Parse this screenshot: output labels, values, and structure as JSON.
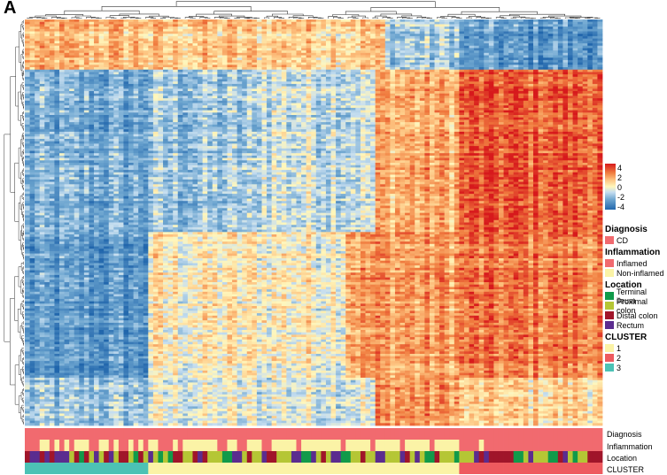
{
  "panel_label": "A",
  "colors": {
    "scale_low": "#2166ac",
    "scale_mid": "#fff7bc",
    "scale_high": "#d7191c",
    "diagnosis_cd": "#f16a6f",
    "inflamed": "#f16a6f",
    "non_inflamed": "#fbf3a6",
    "terminal_ileum": "#119a4a",
    "proximal_colon": "#b5c635",
    "distal_colon": "#a0152a",
    "rectum": "#5b2c8f",
    "cluster_1": "#fbf3a6",
    "cluster_2": "#ee5a5f",
    "cluster_3": "#4cc2b5"
  },
  "chart_data": {
    "type": "heatmap",
    "title": "",
    "xlabel": "",
    "ylabel": "",
    "clustered_rows": true,
    "clustered_columns": true,
    "n_columns": 117,
    "n_rows": 170,
    "color_scale": {
      "ticks": [
        "4",
        "2",
        "0",
        "-2",
        "-4"
      ],
      "range": [
        -4,
        4
      ]
    },
    "annotation_tracks": [
      "Diagnosis",
      "Inflammation",
      "Location",
      "CLUSTER"
    ],
    "legend": [
      {
        "title": "Diagnosis",
        "items": [
          {
            "label": "CD",
            "color": "#f16a6f"
          }
        ]
      },
      {
        "title": "Inflammation",
        "items": [
          {
            "label": "Inflamed",
            "color": "#f16a6f"
          },
          {
            "label": "Non-inflamed",
            "color": "#fbf3a6"
          }
        ]
      },
      {
        "title": "Location",
        "items": [
          {
            "label": "Terminal ileum",
            "color": "#119a4a"
          },
          {
            "label": "Proximal colon",
            "color": "#b5c635"
          },
          {
            "label": "Distal colon",
            "color": "#a0152a"
          },
          {
            "label": "Rectum",
            "color": "#5b2c8f"
          }
        ]
      },
      {
        "title": "CLUSTER",
        "items": [
          {
            "label": "1",
            "color": "#fbf3a6"
          },
          {
            "label": "2",
            "color": "#ee5a5f"
          },
          {
            "label": "3",
            "color": "#4cc2b5"
          }
        ]
      }
    ],
    "cluster_spans": [
      {
        "cluster": "3",
        "columns": 25
      },
      {
        "cluster": "1",
        "columns": 63
      },
      {
        "cluster": "2",
        "columns": 29
      }
    ]
  }
}
